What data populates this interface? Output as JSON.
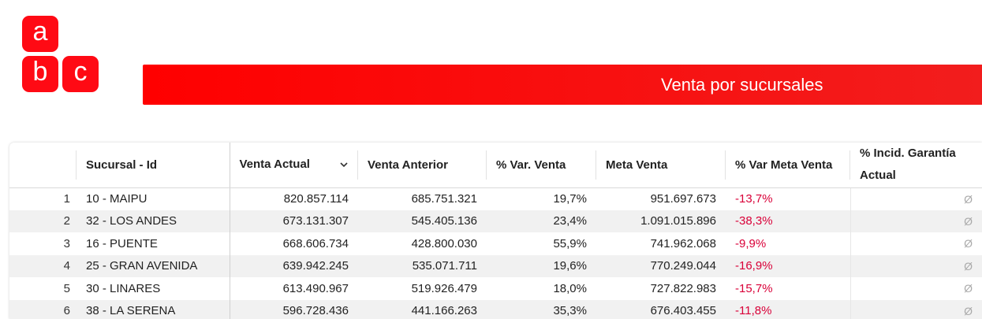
{
  "logo": {
    "letters": [
      "a",
      "b",
      "c"
    ],
    "color": "#ff0a14"
  },
  "banner": {
    "title": "Venta por sucursales",
    "color": "#ff0000"
  },
  "table": {
    "columns": [
      {
        "label": "",
        "key": "idx"
      },
      {
        "label": "Sucursal - Id",
        "key": "sucursal"
      },
      {
        "label": "Venta Actual",
        "key": "venta_actual",
        "sorted": "desc"
      },
      {
        "label": "Venta Anterior",
        "key": "venta_anterior"
      },
      {
        "label": "% Var. Venta",
        "key": "var_venta"
      },
      {
        "label": "Meta Venta",
        "key": "meta_venta"
      },
      {
        "label": "% Var Meta Venta",
        "key": "var_meta"
      },
      {
        "label": "% Incid. Garantía Actual",
        "key": "incid_garantia"
      }
    ],
    "rows": [
      {
        "idx": "1",
        "sucursal": "10 - MAIPU",
        "venta_actual": "820.857.114",
        "venta_anterior": "685.751.321",
        "var_venta": "19,7%",
        "meta_venta": "951.697.673",
        "var_meta": "-13,7%",
        "incid_garantia": "Ø"
      },
      {
        "idx": "2",
        "sucursal": "32 - LOS ANDES",
        "venta_actual": "673.131.307",
        "venta_anterior": "545.405.136",
        "var_venta": "23,4%",
        "meta_venta": "1.091.015.896",
        "var_meta": "-38,3%",
        "incid_garantia": "Ø"
      },
      {
        "idx": "3",
        "sucursal": "16 - PUENTE",
        "venta_actual": "668.606.734",
        "venta_anterior": "428.800.030",
        "var_venta": "55,9%",
        "meta_venta": "741.962.068",
        "var_meta": "-9,9%",
        "incid_garantia": "Ø"
      },
      {
        "idx": "4",
        "sucursal": "25 - GRAN AVENIDA",
        "venta_actual": "639.942.245",
        "venta_anterior": "535.071.711",
        "var_venta": "19,6%",
        "meta_venta": "770.249.044",
        "var_meta": "-16,9%",
        "incid_garantia": "Ø"
      },
      {
        "idx": "5",
        "sucursal": "30 - LINARES",
        "venta_actual": "613.490.967",
        "venta_anterior": "519.926.479",
        "var_venta": "18,0%",
        "meta_venta": "727.822.983",
        "var_meta": "-15,7%",
        "incid_garantia": "Ø"
      },
      {
        "idx": "6",
        "sucursal": "38 - LA SERENA",
        "venta_actual": "596.728.436",
        "venta_anterior": "441.166.263",
        "var_venta": "35,3%",
        "meta_venta": "676.403.455",
        "var_meta": "-11,8%",
        "incid_garantia": "Ø"
      }
    ],
    "negative_color": "#d90038"
  }
}
